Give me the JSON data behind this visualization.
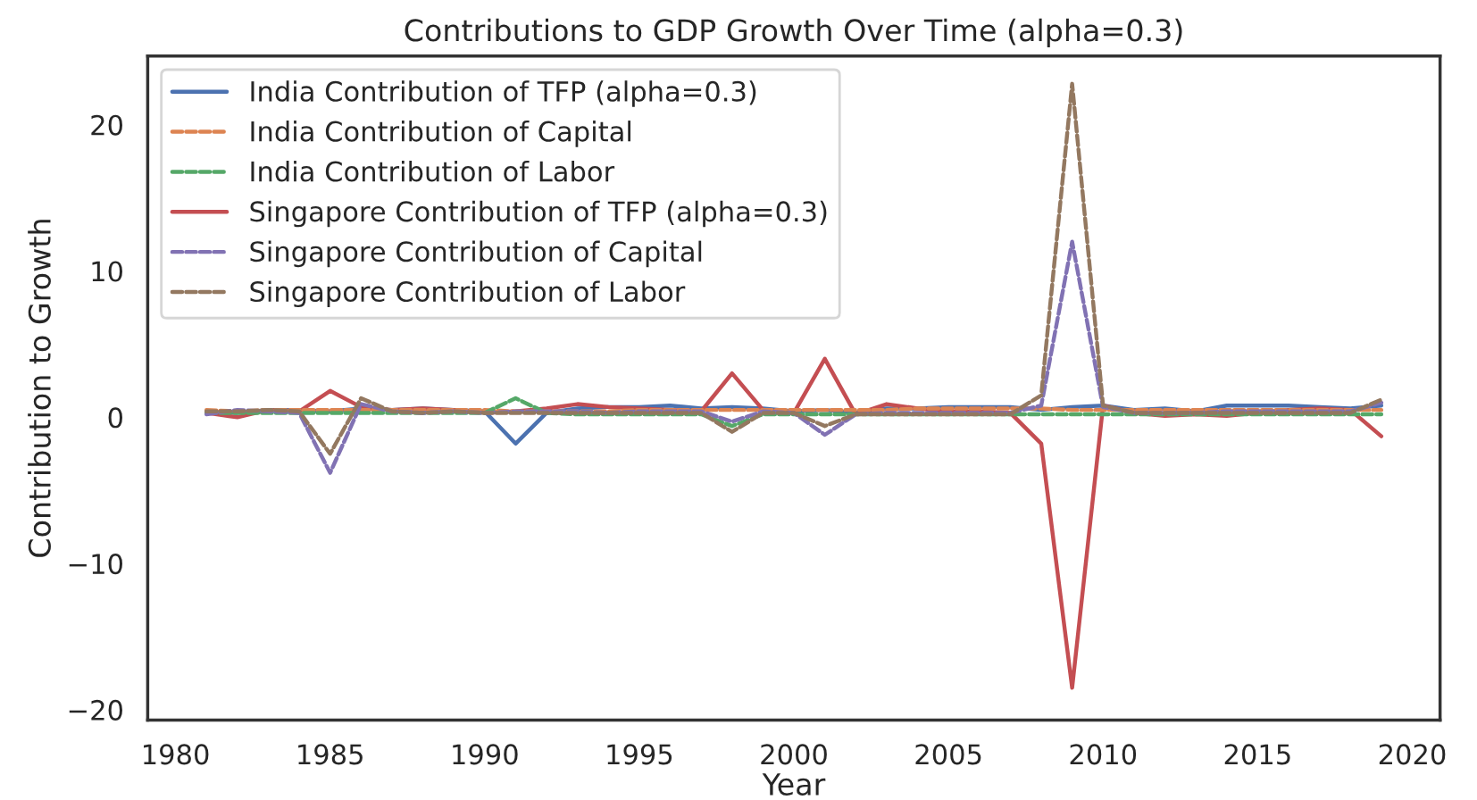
{
  "chart_data": {
    "type": "line",
    "title": "Contributions to GDP Growth Over Time (alpha=0.3)",
    "xlabel": "Year",
    "ylabel": "Contribution to Growth",
    "x": [
      1981,
      1982,
      1983,
      1984,
      1985,
      1986,
      1987,
      1988,
      1989,
      1990,
      1991,
      1992,
      1993,
      1994,
      1995,
      1996,
      1997,
      1998,
      1999,
      2000,
      2001,
      2002,
      2003,
      2004,
      2005,
      2006,
      2007,
      2008,
      2009,
      2010,
      2011,
      2012,
      2013,
      2014,
      2015,
      2016,
      2017,
      2018,
      2019
    ],
    "series": [
      {
        "name": "India Contribution of TFP (alpha=0.3)",
        "color": "#4c72b0",
        "line_style": "solid",
        "values": [
          0.4,
          0.3,
          0.5,
          0.5,
          0.4,
          0.6,
          0.5,
          0.6,
          0.5,
          0.4,
          -1.8,
          0.3,
          0.6,
          0.7,
          0.7,
          0.8,
          0.6,
          0.7,
          0.6,
          0.4,
          0.5,
          0.3,
          0.6,
          0.6,
          0.7,
          0.7,
          0.7,
          0.5,
          0.7,
          0.8,
          0.5,
          0.6,
          0.4,
          0.8,
          0.8,
          0.8,
          0.7,
          0.6,
          0.8
        ]
      },
      {
        "name": "India Contribution of Capital",
        "color": "#dd8452",
        "line_style": "dashed",
        "values": [
          0.5,
          0.4,
          0.5,
          0.5,
          0.5,
          0.5,
          0.5,
          0.5,
          0.5,
          0.5,
          0.4,
          0.4,
          0.4,
          0.4,
          0.5,
          0.5,
          0.5,
          0.5,
          0.5,
          0.5,
          0.5,
          0.5,
          0.5,
          0.6,
          0.6,
          0.6,
          0.6,
          0.6,
          0.5,
          0.5,
          0.5,
          0.5,
          0.5,
          0.5,
          0.5,
          0.5,
          0.5,
          0.5,
          0.5
        ]
      },
      {
        "name": "India Contribution of Labor",
        "color": "#55a868",
        "line_style": "dashed",
        "values": [
          0.3,
          0.3,
          0.3,
          0.3,
          0.3,
          0.3,
          0.3,
          0.3,
          0.3,
          0.3,
          1.3,
          0.3,
          0.2,
          0.2,
          0.2,
          0.2,
          0.2,
          -0.6,
          0.2,
          0.2,
          0.2,
          0.2,
          0.2,
          0.2,
          0.2,
          0.2,
          0.2,
          0.2,
          0.2,
          0.2,
          0.2,
          0.2,
          0.2,
          0.2,
          0.2,
          0.2,
          0.2,
          0.2,
          0.2
        ]
      },
      {
        "name": "Singapore Contribution of TFP (alpha=0.3)",
        "color": "#c44e52",
        "line_style": "solid",
        "values": [
          0.3,
          0.0,
          0.5,
          0.4,
          1.8,
          0.7,
          0.5,
          0.6,
          0.5,
          0.3,
          0.4,
          0.6,
          0.9,
          0.7,
          0.6,
          0.5,
          0.4,
          3.0,
          0.5,
          0.3,
          4.0,
          0.2,
          0.9,
          0.6,
          0.4,
          0.4,
          0.3,
          -1.8,
          -18.5,
          0.8,
          0.3,
          0.1,
          0.2,
          0.1,
          0.3,
          0.5,
          0.6,
          0.5,
          -1.3
        ]
      },
      {
        "name": "Singapore Contribution of Capital",
        "color": "#8172b3",
        "line_style": "dashed",
        "values": [
          0.2,
          0.5,
          0.4,
          0.3,
          -3.8,
          0.9,
          0.4,
          0.3,
          0.4,
          0.3,
          0.4,
          0.4,
          0.4,
          0.3,
          0.4,
          0.4,
          0.4,
          -0.3,
          0.4,
          0.3,
          -1.2,
          0.2,
          0.3,
          0.3,
          0.3,
          0.3,
          0.3,
          0.8,
          12.0,
          0.7,
          0.3,
          0.3,
          0.3,
          0.4,
          0.4,
          0.4,
          0.4,
          0.4,
          1.0
        ]
      },
      {
        "name": "Singapore Contribution of Labor",
        "color": "#937860",
        "line_style": "dashed",
        "values": [
          0.4,
          0.4,
          0.5,
          0.4,
          -2.5,
          1.3,
          0.4,
          0.3,
          0.4,
          0.3,
          0.3,
          0.3,
          0.3,
          0.3,
          0.3,
          0.3,
          0.3,
          -1.0,
          0.3,
          0.3,
          -0.6,
          0.2,
          0.2,
          0.2,
          0.2,
          0.2,
          0.2,
          1.5,
          22.8,
          0.8,
          0.3,
          0.3,
          0.3,
          0.3,
          0.3,
          0.3,
          0.3,
          0.3,
          1.2
        ]
      }
    ],
    "xlim": [
      1979.1,
      2020.9
    ],
    "xticks": [
      1980,
      1985,
      1990,
      1995,
      2000,
      2005,
      2010,
      2015,
      2020
    ],
    "ylim": [
      -20.7,
      24.7
    ],
    "yticks": [
      {
        "value": -20,
        "label": "−20"
      },
      {
        "value": -10,
        "label": "−10"
      },
      0,
      10,
      20
    ],
    "grid": false,
    "legend": "top left"
  }
}
